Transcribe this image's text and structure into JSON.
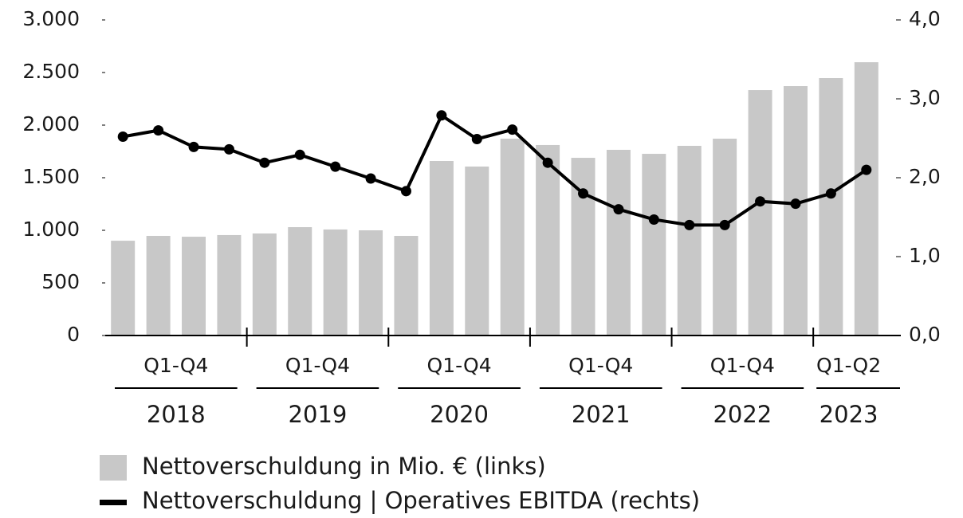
{
  "chart_data": {
    "type": "bar_line",
    "categories": [
      null,
      null,
      null,
      null,
      null,
      null,
      null,
      null,
      null,
      null,
      null,
      null,
      null,
      null,
      null,
      null,
      null,
      null,
      null,
      null,
      null,
      null
    ],
    "groups": [
      {
        "period": "Q1-Q4",
        "year": "2018",
        "quarters": 4
      },
      {
        "period": "Q1-Q4",
        "year": "2019",
        "quarters": 4
      },
      {
        "period": "Q1-Q4",
        "year": "2020",
        "quarters": 4
      },
      {
        "period": "Q1-Q4",
        "year": "2021",
        "quarters": 4
      },
      {
        "period": "Q1-Q4",
        "year": "2022",
        "quarters": 4
      },
      {
        "period": "Q1-Q2",
        "year": "2023",
        "quarters": 2
      }
    ],
    "series": [
      {
        "name": "Nettoverschuldung in Mio. € (links)",
        "type": "bar",
        "color": "#c8c8c8",
        "axis": "y",
        "values": [
          901,
          947,
          939,
          955,
          970,
          1030,
          1008,
          1000,
          947,
          1659,
          1606,
          1871,
          1811,
          1689,
          1765,
          1727,
          1803,
          1871,
          2333,
          2371,
          2447,
          2598
        ]
      },
      {
        "name": "Nettoverschuldung | Operatives EBITDA (rechts)",
        "type": "line",
        "color": "#000000",
        "axis": "y2",
        "values": [
          2.52,
          2.6,
          2.39,
          2.36,
          2.19,
          2.29,
          2.14,
          1.99,
          1.83,
          2.79,
          2.49,
          2.61,
          2.19,
          1.8,
          1.6,
          1.47,
          1.4,
          1.4,
          1.7,
          1.67,
          1.8,
          2.1
        ]
      }
    ],
    "ylim": [
      0,
      3000
    ],
    "yticks": [
      0,
      500,
      {
        "value": 1000,
        "label": "1.000"
      },
      {
        "value": 1500,
        "label": "1.500"
      },
      {
        "value": 2000,
        "label": "2.000"
      },
      {
        "value": 2500,
        "label": "2.500"
      },
      {
        "value": 3000,
        "label": "3.000"
      }
    ],
    "y2lim": [
      0,
      4
    ],
    "y2ticks": [
      {
        "value": 0,
        "label": "0,0"
      },
      {
        "value": 1,
        "label": "1,0"
      },
      {
        "value": 2,
        "label": "2,0"
      },
      {
        "value": 3,
        "label": "3,0"
      },
      {
        "value": 4,
        "label": "4,0"
      }
    ],
    "grid": false
  }
}
